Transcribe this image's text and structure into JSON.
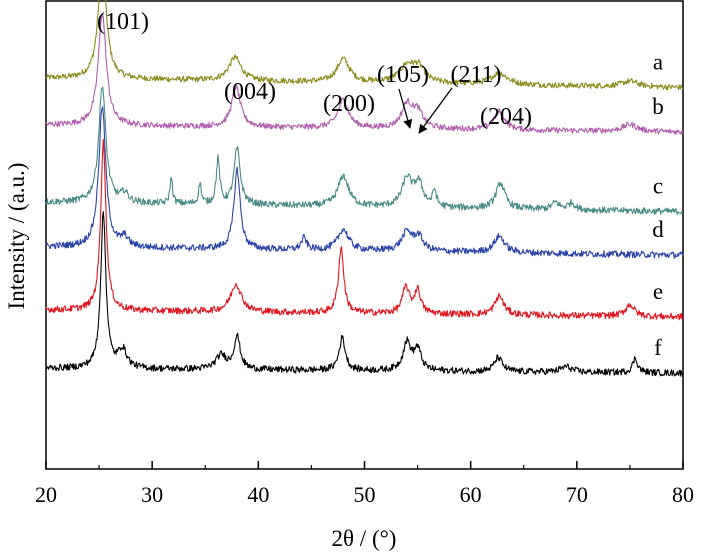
{
  "chart_data": {
    "type": "line",
    "xlabel": "2θ / (°)",
    "ylabel": "Intensity / (a.u.)",
    "xlim": [
      20,
      80
    ],
    "grid": false,
    "x_ticks": [
      20,
      30,
      40,
      50,
      60,
      70,
      80
    ],
    "peak_annotations": [
      {
        "label": "(101)",
        "x": 25.3
      },
      {
        "label": "(004)",
        "x": 37.8
      },
      {
        "label": "(200)",
        "x": 48.0
      },
      {
        "label": "(105)",
        "x": 53.9
      },
      {
        "label": "(211)",
        "x": 55.1
      },
      {
        "label": "(204)",
        "x": 62.7
      }
    ],
    "series": [
      {
        "label": "a",
        "color": "#8c8c1e",
        "baseline": 0.835,
        "slope": 0.02,
        "noise": 0.006,
        "peaks": [
          [
            25.3,
            0.25,
            0.45
          ],
          [
            37.8,
            0.05,
            0.7
          ],
          [
            48.0,
            0.05,
            0.7
          ],
          [
            54.0,
            0.035,
            0.9
          ],
          [
            55.1,
            0.03,
            0.7
          ],
          [
            62.7,
            0.025,
            0.9
          ],
          [
            75.0,
            0.012,
            0.9
          ]
        ]
      },
      {
        "label": "b",
        "color": "#b05fae",
        "baseline": 0.735,
        "slope": 0.015,
        "noise": 0.006,
        "peaks": [
          [
            25.3,
            0.24,
            0.45
          ],
          [
            37.9,
            0.085,
            0.5
          ],
          [
            48.0,
            0.06,
            0.6
          ],
          [
            54.0,
            0.05,
            0.6
          ],
          [
            55.0,
            0.035,
            0.6
          ],
          [
            62.7,
            0.04,
            0.6
          ],
          [
            75.0,
            0.015,
            0.8
          ]
        ]
      },
      {
        "label": "c",
        "color": "#4a8b87",
        "baseline": 0.57,
        "slope": 0.02,
        "noise": 0.007,
        "peaks": [
          [
            25.3,
            0.25,
            0.4
          ],
          [
            27.4,
            0.02,
            0.4
          ],
          [
            31.8,
            0.055,
            0.15
          ],
          [
            34.5,
            0.045,
            0.15
          ],
          [
            36.2,
            0.095,
            0.2
          ],
          [
            38.0,
            0.12,
            0.35
          ],
          [
            48.0,
            0.065,
            0.6
          ],
          [
            54.0,
            0.06,
            0.55
          ],
          [
            55.1,
            0.05,
            0.5
          ],
          [
            56.6,
            0.035,
            0.2
          ],
          [
            62.8,
            0.055,
            0.5
          ],
          [
            68.0,
            0.015,
            0.4
          ],
          [
            69.5,
            0.015,
            0.4
          ]
        ]
      },
      {
        "label": "d",
        "color": "#2b44a8",
        "baseline": 0.475,
        "slope": 0.018,
        "noise": 0.007,
        "peaks": [
          [
            25.3,
            0.3,
            0.4
          ],
          [
            27.4,
            0.02,
            0.4
          ],
          [
            38.0,
            0.17,
            0.35
          ],
          [
            44.3,
            0.025,
            0.3
          ],
          [
            48.0,
            0.045,
            0.6
          ],
          [
            54.0,
            0.04,
            0.6
          ],
          [
            55.1,
            0.03,
            0.5
          ],
          [
            62.7,
            0.035,
            0.6
          ]
        ]
      },
      {
        "label": "e",
        "color": "#e0161e",
        "baseline": 0.34,
        "slope": 0.015,
        "noise": 0.007,
        "peaks": [
          [
            25.4,
            0.36,
            0.3
          ],
          [
            37.9,
            0.06,
            0.6
          ],
          [
            47.8,
            0.14,
            0.3
          ],
          [
            53.9,
            0.055,
            0.4
          ],
          [
            55.0,
            0.05,
            0.35
          ],
          [
            62.7,
            0.04,
            0.5
          ],
          [
            75.0,
            0.025,
            0.5
          ]
        ]
      },
      {
        "label": "f",
        "color": "#000000",
        "baseline": 0.215,
        "slope": 0.01,
        "noise": 0.007,
        "peaks": [
          [
            25.4,
            0.33,
            0.3
          ],
          [
            27.2,
            0.04,
            0.5
          ],
          [
            36.5,
            0.03,
            0.6
          ],
          [
            38.0,
            0.07,
            0.35
          ],
          [
            47.9,
            0.07,
            0.35
          ],
          [
            54.0,
            0.06,
            0.45
          ],
          [
            55.0,
            0.045,
            0.4
          ],
          [
            62.6,
            0.03,
            0.45
          ],
          [
            69.0,
            0.012,
            0.6
          ],
          [
            75.5,
            0.03,
            0.3
          ]
        ]
      }
    ]
  }
}
